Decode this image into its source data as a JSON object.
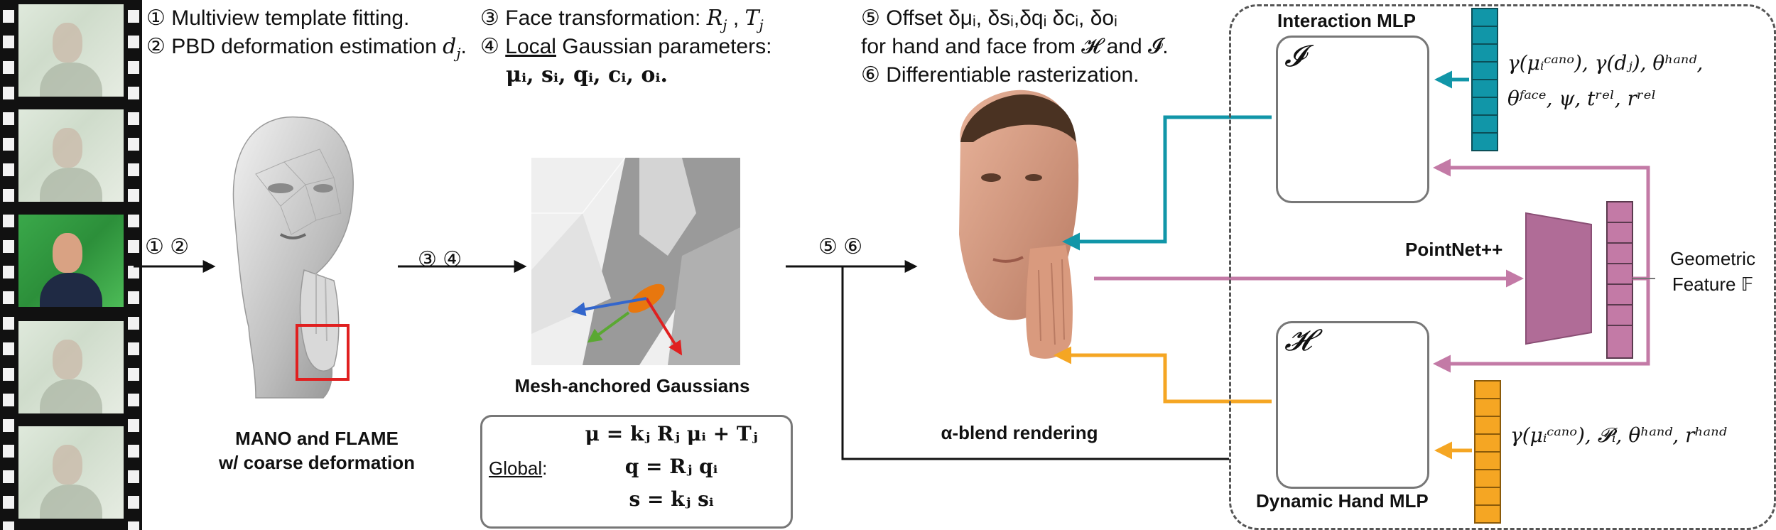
{
  "steps": {
    "s1_num": "①",
    "s1_text": "Multiview template fitting.",
    "s2_num": "②",
    "s2_text": "PBD deformation estimation ",
    "s2_sym": "d",
    "s2_sub": "j",
    "s3_num": "③",
    "s3_text": "Face transformation: ",
    "s3_sym": "R",
    "s3_sub": "j",
    "s3_sym2": "T",
    "s3_sub2": "j",
    "s4_num": "④",
    "s4_underlined": "Local",
    "s4_text": " Gaussian parameters:",
    "s4_params": "μᵢ, sᵢ, qᵢ, cᵢ, oᵢ.",
    "s5_num": "⑤",
    "s5_text": "Offset δμᵢ, δsᵢ,δqᵢ δcᵢ, δoᵢ",
    "s5_line2": "for hand and face from 𝓗 and 𝓘.",
    "s6_num": "⑥",
    "s6_text": "Differentiable rasterization."
  },
  "arrow_labels": {
    "a1": "① ②",
    "a2": "③ ④",
    "a3": "⑤ ⑥"
  },
  "captions": {
    "mano_line1": "MANO and FLAME",
    "mano_line2": "w/ coarse deformation",
    "gaussians": "Mesh-anchored Gaussians",
    "alpha_blend": "α-blend rendering",
    "interaction_mlp": "Interaction MLP",
    "hand_mlp": "Dynamic Hand MLP",
    "pointnet": "PointNet++",
    "geo_line1": "Geometric",
    "geo_line2": "Feature 𝔽"
  },
  "global_box": {
    "label": "Global",
    "colon": ":",
    "eq1": "μ = kⱼ Rⱼ μᵢ + Tⱼ",
    "eq2": "q = Rⱼ qᵢ",
    "eq3": "s = kⱼ sᵢ"
  },
  "mlp_symbols": {
    "interaction": "𝓘",
    "hand": "𝓗"
  },
  "inputs": {
    "interaction_line1": "γ(μᵢᶜᵃⁿᵒ), γ(dⱼ), θʰᵃⁿᵈ,",
    "interaction_line2": "θᶠᵃᶜᵉ, ψ, tʳᵉˡ, rʳᵉˡ",
    "hand_line1": "γ(μᵢᶜᵃⁿᵒ), 𝓟ᵢ, θʰᵃⁿᵈ, rʰᵃⁿᵈ"
  },
  "colors": {
    "teal": "#1196a8",
    "orange": "#f5a623",
    "mauve": "#c37aa6",
    "mauve_dark": "#b06c97",
    "gray": "#777777"
  }
}
